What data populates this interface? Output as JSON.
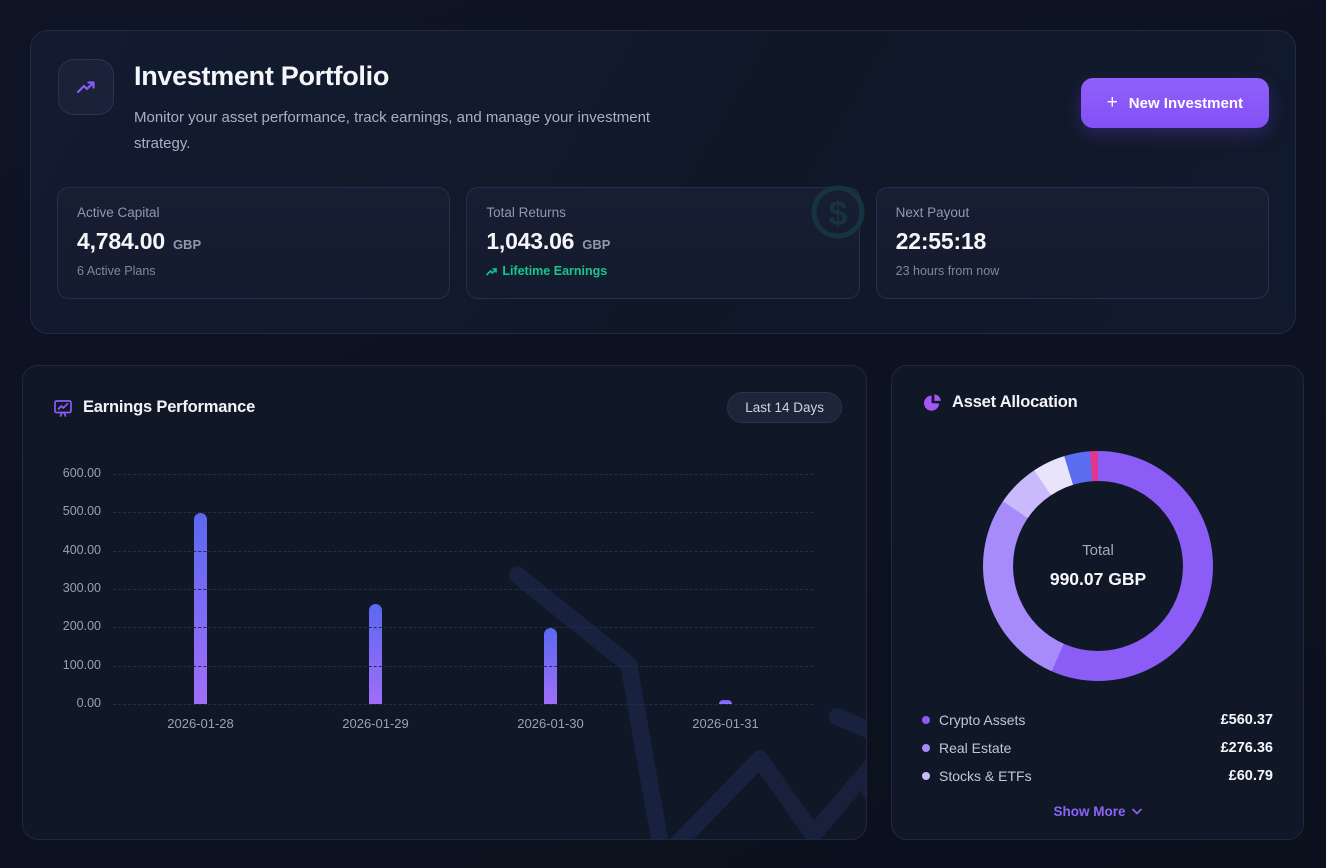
{
  "app": {
    "title": "Investment Portfolio",
    "subtitle": "Monitor your asset performance, track earnings, and manage your investment strategy."
  },
  "header": {
    "new_investment_label": "New Investment",
    "plus_icon": "+",
    "hero_icon": "trending-up-icon"
  },
  "stats": {
    "items": [
      {
        "label": "Active Capital",
        "value": "4,784.00",
        "unit": "GBP",
        "sub": "6 Active Plans"
      },
      {
        "label": "Total Returns",
        "value": "1,043.06",
        "unit": "GBP",
        "sub": "Lifetime Earnings",
        "sub_icon": "trending-up-icon",
        "watermark_icon": "dollar-circle-icon"
      },
      {
        "label": "Next Payout",
        "value": "22:55:18",
        "unit": "",
        "sub": "23 hours from now"
      }
    ]
  },
  "earnings_panel": {
    "title": "Earnings Performance",
    "icon": "presentation-chart-icon",
    "range_button": "Last 14 Days"
  },
  "allocation_panel": {
    "title": "Asset Allocation",
    "icon": "pie-chart-icon",
    "show_more": "Show More"
  },
  "colors": {
    "accent_purple": "#8b5cf6",
    "positive_green": "#16c78c",
    "page_background": "#0c1120",
    "panel_background": "#101827"
  },
  "chart_data": [
    {
      "type": "bar",
      "title": "Earnings Performance",
      "categories": [
        "2026-01-28",
        "2026-01-29",
        "2026-01-30",
        "2026-01-31"
      ],
      "values": [
        497,
        260,
        197,
        10
      ],
      "ylim": [
        0,
        600
      ],
      "yticks": [
        "600.00",
        "500.00",
        "400.00",
        "300.00",
        "200.00",
        "100.00",
        "0.00"
      ],
      "grid": "horizontal-dashed",
      "bar_gradient": [
        "#5b68f0",
        "#a06ef9"
      ],
      "xlabel": "",
      "ylabel": ""
    },
    {
      "type": "pie",
      "title": "Asset Allocation",
      "total_label": "Total",
      "total_value": "990.07 GBP",
      "legend_position": "bottom",
      "segments": [
        {
          "label": "Crypto Assets",
          "value": 560.37,
          "display": "£560.37",
          "color": "#8b5cf6"
        },
        {
          "label": "Real Estate",
          "value": 276.36,
          "display": "£276.36",
          "color": "#a78bfa"
        },
        {
          "label": "Stocks & ETFs",
          "value": 60.79,
          "display": "£60.79",
          "color": "#c9bafc"
        },
        {
          "label": "hidden-segment-1",
          "value": 45.5,
          "color": "#e9e4fb",
          "hidden": true,
          "estimated": true
        },
        {
          "label": "hidden-segment-2",
          "value": 36.0,
          "color": "#5a6cf0",
          "hidden": true,
          "estimated": true
        },
        {
          "label": "hidden-segment-3",
          "value": 11.0,
          "color": "#e2368e",
          "hidden": true,
          "estimated": true
        }
      ]
    }
  ]
}
